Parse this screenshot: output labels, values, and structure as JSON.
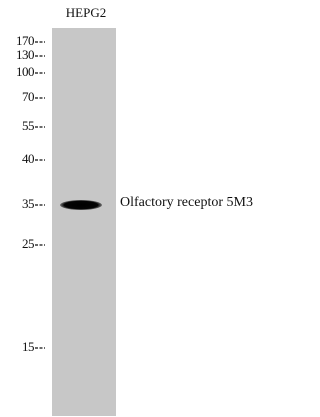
{
  "lane": {
    "label": "HEPG2"
  },
  "markers": [
    "170",
    "130",
    "100",
    "70",
    "55",
    "40",
    "35",
    "25",
    "15"
  ],
  "band": {
    "label": "Olfactory receptor 5M3"
  }
}
